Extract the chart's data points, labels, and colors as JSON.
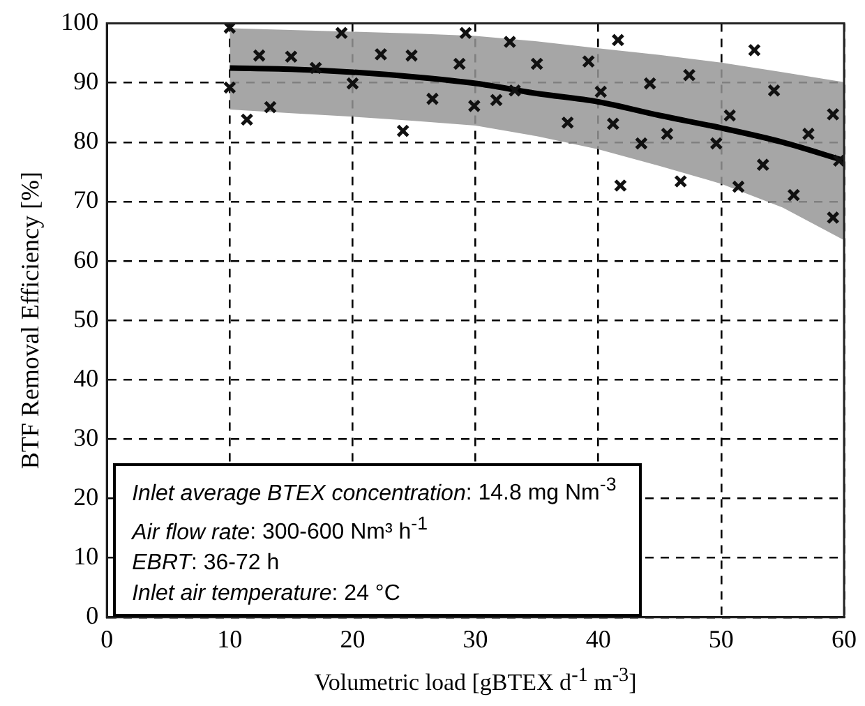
{
  "chart_data": {
    "type": "scatter",
    "xlabel": "Volumetric load [gBTEX d$^{-1}$ m$^{-3}$]",
    "ylabel": "BTF Removal Efficiency [%]",
    "xlim": [
      0,
      60
    ],
    "xticks": [
      0,
      10,
      20,
      30,
      40,
      50,
      60
    ],
    "ylim": [
      0,
      100
    ],
    "yticks": [
      0,
      10,
      20,
      30,
      40,
      50,
      60,
      70,
      80,
      90,
      100
    ],
    "grid": true,
    "legend": false,
    "series": [
      {
        "marker": "cross",
        "color": "#111111",
        "x": [
          10,
          10,
          11.4,
          12.4,
          13.3,
          15,
          17,
          19.1,
          20,
          22.3,
          24.1,
          24.8,
          26.5,
          29.2,
          28.7,
          29.9,
          31.7,
          32.8,
          33.2,
          35,
          37.5,
          39.2,
          40.2,
          41.2,
          41.6,
          41.8,
          43.5,
          44.2,
          45.6,
          47.4,
          46.7,
          49.6,
          50.7,
          51.4,
          52.7,
          53.4,
          54.3,
          55.9,
          57.1,
          59.1,
          59.6,
          59.1
        ],
        "values": [
          99.3,
          89.2,
          83.8,
          94.6,
          85.9,
          94.4,
          92.5,
          98.4,
          89.9,
          94.8,
          81.9,
          94.6,
          87.3,
          98.4,
          93.2,
          86.1,
          87.1,
          96.9,
          88.7,
          93.2,
          83.3,
          93.6,
          88.5,
          83.1,
          97.2,
          72.7,
          79.8,
          89.9,
          81.4,
          91.3,
          73.4,
          79.8,
          84.5,
          72.5,
          95.5,
          76.2,
          88.7,
          71.1,
          81.4,
          84.7,
          76.9,
          67.3
        ]
      },
      {
        "type": "line",
        "marker": "none",
        "color": "#000000",
        "x": [
          10,
          15,
          20,
          25,
          30,
          35,
          40,
          45,
          50,
          55,
          60
        ],
        "values": [
          92.5,
          92.3,
          91.8,
          91,
          89.9,
          88.2,
          86.8,
          84.5,
          82.4,
          80,
          76.9
        ],
        "lower": [
          85.5,
          84.9,
          84.3,
          83.6,
          82.8,
          81,
          78.8,
          76,
          73,
          69,
          63.5
        ],
        "upper": [
          99.2,
          98.9,
          98.6,
          98.3,
          97.9,
          97,
          95.8,
          94.7,
          93.4,
          91.8,
          90.1
        ]
      }
    ],
    "annotations": [
      "Inlet average BTEX concentration: 14.8 mg Nm$^{-3}$",
      "Air flow rate: 300-600 Nm³ h$^{-1}$",
      "EBRT: 36-72 h",
      "Inlet air temperature: 24 °C"
    ]
  }
}
